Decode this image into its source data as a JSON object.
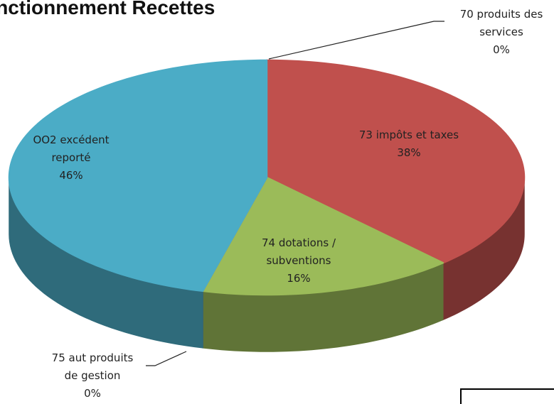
{
  "chart_data": {
    "type": "pie3d",
    "title": "Fonctionnement Recettes",
    "categories": [
      "70 produits des services",
      "73 impôts et taxes",
      "74 dotations / subventions",
      "75 aut produits de gestion",
      "OO2 excédent reporté"
    ],
    "values": [
      0,
      38,
      16,
      0,
      46
    ],
    "value_labels": [
      "0%",
      "38%",
      "16%",
      "0%",
      "46%"
    ],
    "colors": [
      "#4f81bd",
      "#c0504d",
      "#9bbb59",
      "#8064a2",
      "#4bacc6"
    ]
  }
}
